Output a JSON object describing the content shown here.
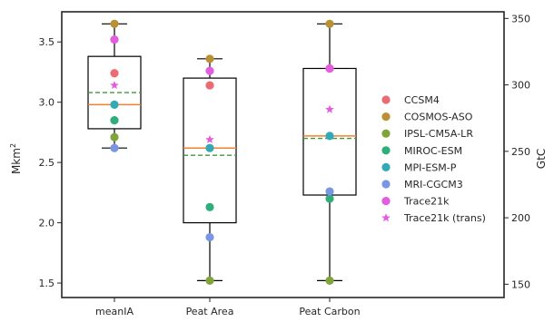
{
  "chart_data": {
    "type": "box",
    "categories": [
      "meanIA",
      "Peat Area",
      "Peat Carbon"
    ],
    "y_left": {
      "label": "Mkm²",
      "lim": [
        1.38,
        3.75
      ],
      "ticks": [
        1.5,
        2.0,
        2.5,
        3.0,
        3.5
      ]
    },
    "y_right": {
      "label": "GtC",
      "lim": [
        140,
        355
      ],
      "ticks": [
        150,
        200,
        250,
        300,
        350
      ]
    },
    "boxes": [
      {
        "category": "meanIA",
        "min": 2.62,
        "q1": 2.78,
        "median": 2.98,
        "mean": 3.08,
        "q3": 3.38,
        "max": 3.65
      },
      {
        "category": "Peat Area",
        "min": 1.52,
        "q1": 2.0,
        "median": 2.62,
        "mean": 2.56,
        "q3": 3.2,
        "max": 3.36
      },
      {
        "category": "Peat Carbon",
        "min": 1.52,
        "q1": 2.23,
        "median": 2.72,
        "mean": 2.7,
        "q3": 3.28,
        "max": 3.65
      }
    ],
    "series": [
      {
        "name": "CCSM4",
        "color": "#ea6b73",
        "marker": "circle",
        "values": [
          3.24,
          3.14,
          3.28
        ]
      },
      {
        "name": "COSMOS-ASO",
        "color": "#b99033",
        "marker": "circle",
        "values": [
          3.65,
          3.36,
          3.65
        ]
      },
      {
        "name": "IPSL-CM5A-LR",
        "color": "#7ea43a",
        "marker": "circle",
        "values": [
          2.71,
          1.52,
          1.52
        ]
      },
      {
        "name": "MIROC-ESM",
        "color": "#2fae7c",
        "marker": "circle",
        "values": [
          2.85,
          2.13,
          2.2
        ]
      },
      {
        "name": "MPI-ESM-P",
        "color": "#33a9b8",
        "marker": "circle",
        "values": [
          2.98,
          2.62,
          2.72
        ]
      },
      {
        "name": "MRI-CGCM3",
        "color": "#7896e3",
        "marker": "circle",
        "values": [
          2.62,
          1.88,
          2.26
        ]
      },
      {
        "name": "Trace21k",
        "color": "#e35de0",
        "marker": "circle",
        "values": [
          3.52,
          3.26,
          3.28
        ]
      },
      {
        "name": "Trace21k (trans)",
        "color": "#e35de0",
        "marker": "star",
        "values": [
          3.14,
          2.69,
          2.94
        ]
      }
    ],
    "median_color": "#f28030",
    "mean_color": "#3a9b3a",
    "legend_position": "right"
  }
}
